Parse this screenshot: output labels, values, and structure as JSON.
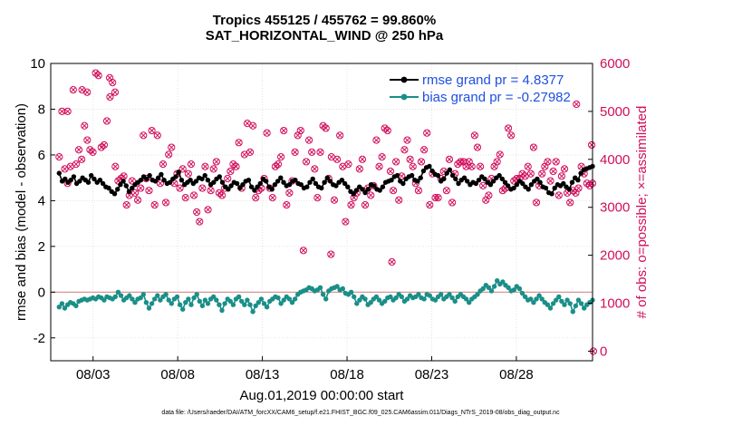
{
  "chart_data": {
    "type": "line",
    "title_line1": "Tropics 455125 / 455762 = 99.860%",
    "title_line2": "SAT_HORIZONTAL_WIND @ 250 hPa",
    "ylabel_left": "rmse and bias (model - observation)",
    "ylabel_right": "# of obs: o=possible; ×=assimilated",
    "xlabel": "Aug.01,2019 00:00:00 start",
    "footer": "data file: /Users/raeder/DAI/ATM_forcXX/CAM6_setup/f.e21.FHIST_BGC.f09_025.CAM6assim.011/Diags_NTrS_2019-08/obs_diag_output.nc",
    "xlim": [
      0.5,
      32.5
    ],
    "ylim_left": [
      -3,
      10
    ],
    "ylim_right": [
      -200,
      6000
    ],
    "left_ticks": [
      "-2",
      "0",
      "2",
      "4",
      "6",
      "8",
      "10"
    ],
    "right_ticks": [
      "0",
      "1000",
      "2000",
      "3000",
      "4000",
      "5000",
      "6000"
    ],
    "x_ticks": [
      {
        "day": 3,
        "label": "08/03"
      },
      {
        "day": 8,
        "label": "08/08"
      },
      {
        "day": 13,
        "label": "08/13"
      },
      {
        "day": 18,
        "label": "08/18"
      },
      {
        "day": 23,
        "label": "08/23"
      },
      {
        "day": 28,
        "label": "08/28"
      }
    ],
    "series": [
      {
        "name": "rmse grand pr = 4.8377",
        "color": "#000000",
        "axis": "left"
      },
      {
        "name": "bias grand pr = -0.27982",
        "color": "#1a8f88",
        "axis": "left"
      }
    ],
    "rmse": [
      5.2,
      4.85,
      4.95,
      4.8,
      4.9,
      5.05,
      4.75,
      4.85,
      5.0,
      4.9,
      4.8,
      5.1,
      4.95,
      4.8,
      4.9,
      4.75,
      4.6,
      4.55,
      4.4,
      4.3,
      4.5,
      4.7,
      4.85,
      4.65,
      4.4,
      4.55,
      4.7,
      4.8,
      4.9,
      5.05,
      4.95,
      5.1,
      4.9,
      4.85,
      5.0,
      5.15,
      4.9,
      4.75,
      4.8,
      4.95,
      5.05,
      5.25,
      4.9,
      4.7,
      4.8,
      4.9,
      4.75,
      4.85,
      5.0,
      4.95,
      5.1,
      4.9,
      4.7,
      4.8,
      4.95,
      5.05,
      4.8,
      4.6,
      4.5,
      4.65,
      4.8,
      4.75,
      4.55,
      4.7,
      4.85,
      4.9,
      4.6,
      4.45,
      4.6,
      4.75,
      4.95,
      4.85,
      4.6,
      4.5,
      4.7,
      4.85,
      5.0,
      4.8,
      4.65,
      4.7,
      4.85,
      4.9,
      4.75,
      4.7,
      4.55,
      4.6,
      4.8,
      4.95,
      4.75,
      4.6,
      4.55,
      4.8,
      5.0,
      4.85,
      4.7,
      4.65,
      4.8,
      4.9,
      4.75,
      4.6,
      4.4,
      4.3,
      4.45,
      4.6,
      4.5,
      4.35,
      4.5,
      4.7,
      4.65,
      4.5,
      4.45,
      4.6,
      4.8,
      4.85,
      4.9,
      5.05,
      5.1,
      4.85,
      4.75,
      4.95,
      5.05,
      5.1,
      4.9,
      4.85,
      5.0,
      5.3,
      5.45,
      5.5,
      5.3,
      5.15,
      5.1,
      4.85,
      4.95,
      5.2,
      5.35,
      5.1,
      4.95,
      4.75,
      4.9,
      5.0,
      4.85,
      4.7,
      4.8,
      4.75,
      4.9,
      5.05,
      4.95,
      4.8,
      4.7,
      4.85,
      5.0,
      5.1,
      4.95,
      4.8,
      4.65,
      4.5,
      4.55,
      4.7,
      4.85,
      4.75,
      4.6,
      4.5,
      4.7,
      4.85,
      4.95,
      4.8,
      4.6,
      4.55,
      4.35,
      4.3,
      4.55,
      4.7,
      4.65,
      4.75,
      4.6,
      4.5,
      4.8,
      5.0,
      4.9,
      5.2,
      5.35,
      5.4,
      5.45,
      5.5
    ],
    "bias": [
      -0.65,
      -0.5,
      -0.7,
      -0.55,
      -0.45,
      -0.5,
      -0.6,
      -0.4,
      -0.35,
      -0.3,
      -0.35,
      -0.3,
      -0.25,
      -0.3,
      -0.2,
      -0.25,
      -0.35,
      -0.2,
      -0.25,
      -0.3,
      -0.2,
      0.0,
      -0.15,
      -0.35,
      -0.25,
      -0.15,
      -0.3,
      -0.45,
      -0.3,
      -0.25,
      -0.1,
      -0.45,
      -0.7,
      -0.5,
      -0.3,
      -0.15,
      -0.35,
      -0.2,
      -0.1,
      -0.35,
      -0.5,
      -0.3,
      -0.2,
      -0.55,
      -0.75,
      -0.45,
      -0.3,
      -0.55,
      -0.25,
      -0.1,
      -0.4,
      -0.6,
      -0.35,
      -0.5,
      -0.3,
      -0.2,
      -0.35,
      -0.55,
      -0.8,
      -0.5,
      -0.3,
      -0.4,
      -0.55,
      -0.3,
      -0.2,
      -0.4,
      -0.55,
      -0.35,
      -0.55,
      -0.85,
      -0.6,
      -0.45,
      -0.3,
      -0.5,
      -0.65,
      -0.4,
      -0.3,
      -0.2,
      -0.25,
      -0.5,
      -0.35,
      -0.2,
      -0.3,
      -0.45,
      -0.3,
      -0.1,
      0.0,
      0.05,
      0.1,
      0.2,
      0.15,
      0.05,
      0.1,
      0.2,
      -0.1,
      -0.3,
      0.05,
      0.15,
      0.2,
      0.25,
      0.1,
      0.15,
      -0.05,
      -0.1,
      0.0,
      -0.2,
      -0.5,
      -0.35,
      -0.2,
      -0.3,
      -0.55,
      -0.45,
      -0.3,
      -0.2,
      -0.35,
      -0.5,
      -0.4,
      -0.25,
      -0.2,
      -0.35,
      -0.25,
      -0.1,
      -0.2,
      -0.4,
      -0.3,
      -0.15,
      -0.25,
      -0.2,
      -0.1,
      -0.25,
      -0.3,
      -0.1,
      -0.15,
      -0.3,
      -0.35,
      -0.2,
      -0.1,
      -0.3,
      -0.2,
      -0.1,
      -0.25,
      -0.4,
      -0.2,
      -0.1,
      -0.2,
      -0.3,
      -0.45,
      -0.3,
      -0.2,
      -0.1,
      0.05,
      0.15,
      0.3,
      0.2,
      0.05,
      0.25,
      0.5,
      0.35,
      0.45,
      0.3,
      0.2,
      0.05,
      0.1,
      0.25,
      0.15,
      -0.05,
      -0.2,
      -0.35,
      -0.3,
      -0.45,
      -0.3,
      -0.15,
      -0.3,
      -0.45,
      -0.55,
      -0.7,
      -0.5,
      -0.35,
      -0.2,
      -0.4,
      -0.55,
      -0.35,
      -0.5,
      -0.85,
      -0.6,
      -0.35,
      -0.5,
      -0.7,
      -0.55,
      -0.45,
      -0.35
    ],
    "obs_count": [
      4050,
      5000,
      3800,
      3500,
      3850,
      5450,
      3900,
      4200,
      4000,
      4700,
      4400,
      4200,
      4150,
      5800,
      5750,
      4250,
      4300,
      4800,
      5700,
      5600,
      3850,
      3550,
      3600,
      3650,
      3050,
      3250,
      3550,
      3300,
      3150,
      3400,
      4500,
      3600,
      3350,
      4600,
      3050,
      4500,
      3500,
      3900,
      3100,
      4100,
      4250,
      3500,
      3700,
      3400,
      3800,
      3200,
      3700,
      3900,
      3250,
      2900,
      2700,
      3400,
      3850,
      2950,
      3350,
      3800,
      3950,
      3300,
      3250,
      3400,
      3600,
      3750,
      3900,
      3850,
      4350,
      3400,
      4100,
      4750,
      4150,
      4700,
      3200,
      3350,
      3400,
      3600,
      4550,
      3400,
      3200,
      3850,
      3900,
      4050,
      4600,
      3050,
      3300,
      3550,
      4150,
      4500,
      4600,
      2100,
      3950,
      4400,
      4150,
      3800,
      3200,
      4150,
      4700,
      4650,
      3600,
      4050,
      3150,
      4000,
      4500,
      3850,
      2700,
      3900,
      3050,
      3200,
      3300,
      3800,
      4000,
      3050,
      3400,
      3250,
      3450,
      4400,
      3850,
      4050,
      4650,
      4600,
      3750,
      3350,
      3950,
      3150,
      3650,
      4200,
      4400,
      4000,
      3850,
      3500,
      3350,
      3950,
      4200,
      4550,
      3050,
      3700,
      3200,
      3200,
      3600,
      3750,
      3350,
      4000,
      3100,
      3700,
      3900,
      3950,
      3950,
      3850,
      3950,
      3850,
      4500,
      4250,
      3850,
      3450,
      3150,
      3250,
      3600,
      3850,
      3950,
      4100,
      3350,
      3400,
      4650,
      4500,
      3550,
      3600,
      3600,
      3700,
      3650,
      3850,
      3700,
      4250,
      3100,
      3450,
      3700,
      3850,
      3950,
      3550,
      3750,
      3950,
      3250,
      3650,
      3800,
      3300,
      3100,
      3350,
      3300,
      3400,
      3850,
      3700,
      3500,
      3450,
      3500
    ],
    "special_points": [
      {
        "day": 1.5,
        "count": 5000
      },
      {
        "day": 2.35,
        "count": 5450
      },
      {
        "day": 2.65,
        "count": 5400
      },
      {
        "day": 4.0,
        "count": 5300
      },
      {
        "day": 4.3,
        "count": 5400
      },
      {
        "day": 17.05,
        "count": 2020
      },
      {
        "day": 20.65,
        "count": 1860
      },
      {
        "day": 31.55,
        "count": 5150
      },
      {
        "day": 32.45,
        "count": 4300
      },
      {
        "day": 32.55,
        "count": -2
      }
    ]
  }
}
